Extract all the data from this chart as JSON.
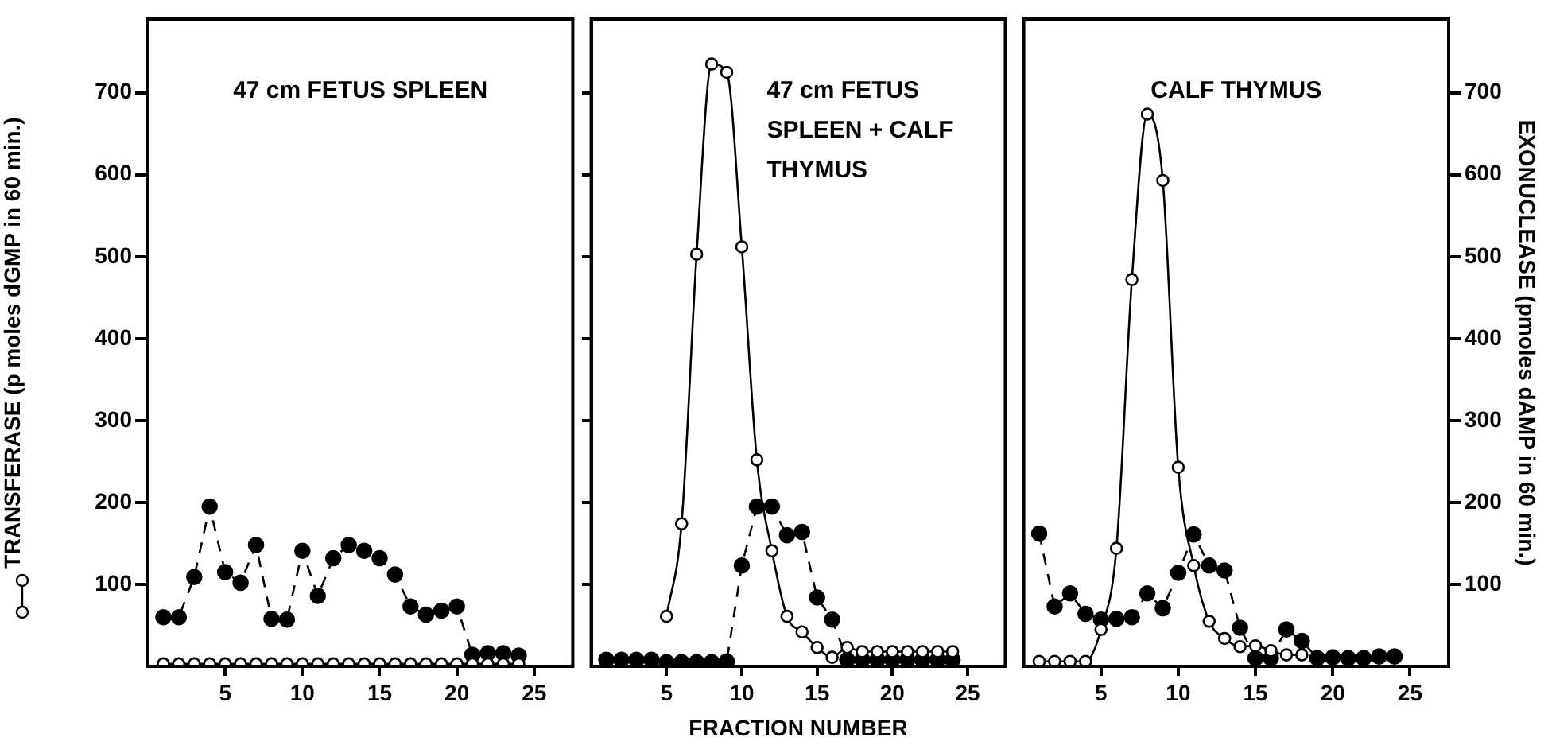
{
  "chart_data": [
    {
      "type": "line",
      "title": "47 cm FETUS SPLEEN",
      "ylabel": "TRANSFERASE (p moles dGMP in 60 min.)",
      "x": [
        1,
        2,
        3,
        4,
        5,
        6,
        7,
        8,
        9,
        10,
        11,
        12,
        13,
        14,
        15,
        16,
        17,
        18,
        19,
        20,
        21,
        22,
        23,
        24
      ],
      "xlim": [
        0,
        27.5
      ],
      "xticks": [
        5,
        10,
        15,
        20,
        25
      ],
      "ylim": [
        0,
        790
      ],
      "yticks": [
        100,
        200,
        300,
        400,
        500,
        600,
        700
      ],
      "series": [
        {
          "color": "#000000",
          "marker": "circle",
          "line_style": "solid",
          "values": [
            3,
            3,
            3,
            3,
            3,
            3,
            3,
            3,
            3,
            3,
            3,
            3,
            3,
            3,
            3,
            3,
            3,
            3,
            3,
            3,
            3,
            3,
            3,
            3
          ]
        },
        {
          "color": "#000000",
          "marker": "circle",
          "line_style": "dashed",
          "values": [
            60,
            60,
            109,
            195,
            115,
            102,
            148,
            58,
            57,
            141,
            86,
            132,
            148,
            141,
            132,
            112,
            73,
            63,
            68,
            73,
            14,
            16,
            16,
            13
          ]
        }
      ]
    },
    {
      "type": "line",
      "title": "47 cm FETUS SPLEEN + CALF THYMUS",
      "xlabel": "FRACTION NUMBER",
      "x": [
        1,
        2,
        3,
        4,
        5,
        6,
        7,
        8,
        9,
        10,
        11,
        12,
        13,
        14,
        15,
        16,
        17,
        18,
        19,
        20,
        21,
        22,
        23,
        24
      ],
      "xlim": [
        0,
        27.5
      ],
      "xticks": [
        5,
        10,
        15,
        20,
        25
      ],
      "ylim": [
        0,
        790
      ],
      "yticks": [
        100,
        200,
        300,
        400,
        500,
        600,
        700
      ],
      "tick_labels": "x",
      "series": [
        {
          "color": "#000000",
          "marker": "circle",
          "line_style": "solid",
          "values": [
            null,
            null,
            null,
            null,
            61,
            174,
            503,
            735,
            725,
            512,
            252,
            141,
            61,
            42,
            23,
            11,
            23,
            18,
            18,
            18,
            18,
            18,
            18,
            18
          ]
        },
        {
          "color": "#000000",
          "marker": "circle",
          "line_style": "dashed",
          "values": [
            8,
            8,
            8,
            8,
            5,
            5,
            5,
            5,
            6,
            123,
            195,
            195,
            160,
            164,
            84,
            57,
            8,
            8,
            8,
            8,
            8,
            8,
            8,
            8
          ]
        }
      ]
    },
    {
      "type": "line",
      "title": "CALF THYMUS",
      "y2label": "EXONUCLEASE (pmoles dAMP in 60 min.)",
      "x": [
        1,
        2,
        3,
        4,
        5,
        6,
        7,
        8,
        9,
        10,
        11,
        12,
        13,
        14,
        15,
        16,
        17,
        18,
        19,
        20,
        21,
        22,
        23,
        24
      ],
      "xlim": [
        0,
        27.5
      ],
      "xticks": [
        5,
        10,
        15,
        20,
        25
      ],
      "y2lim": [
        0,
        790
      ],
      "y2ticks": [
        100,
        200,
        300,
        400,
        500,
        600,
        700
      ],
      "series": [
        {
          "color": "#000000",
          "marker": "circle",
          "line_style": "solid",
          "axis": "y2",
          "values": [
            6,
            6,
            6,
            6,
            45,
            144,
            472,
            674,
            593,
            243,
            123,
            55,
            34,
            24,
            25,
            19,
            14,
            14,
            null,
            null,
            null,
            null,
            null,
            null
          ]
        },
        {
          "color": "#000000",
          "marker": "circle",
          "line_style": "dashed",
          "axis": "y2",
          "values": [
            162,
            73,
            89,
            64,
            57,
            58,
            60,
            89,
            71,
            114,
            161,
            123,
            117,
            47,
            10,
            10,
            45,
            31,
            10,
            11,
            10,
            10,
            12,
            12
          ]
        }
      ]
    }
  ]
}
